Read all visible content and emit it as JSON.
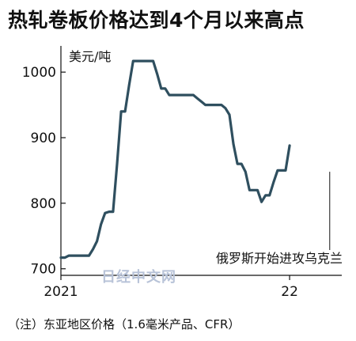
{
  "chart_data": {
    "type": "line",
    "title": "热轧卷板价格达到4个月以来高点",
    "ylabel": "美元/吨",
    "ylim": [
      690,
      1040
    ],
    "yticks": [
      700,
      800,
      900,
      1000
    ],
    "xticks": [
      {
        "label": "2021",
        "x": 0
      },
      {
        "label": "22",
        "x": 57
      }
    ],
    "xlim": [
      0,
      70
    ],
    "x_unit_note": "",
    "note": "（注）东亚地区价格（1.6毫米产品、CFR）",
    "annotation": {
      "text": "俄罗斯开始进攻乌克兰",
      "x": 67
    },
    "watermark": "日经中文网",
    "series": [
      {
        "name": "",
        "color": "#2f4f5f",
        "points": [
          [
            0,
            717
          ],
          [
            1,
            717
          ],
          [
            2,
            720
          ],
          [
            3,
            720
          ],
          [
            4,
            720
          ],
          [
            5,
            720
          ],
          [
            6,
            720
          ],
          [
            7,
            720
          ],
          [
            8,
            730
          ],
          [
            9,
            742
          ],
          [
            10,
            768
          ],
          [
            11,
            785
          ],
          [
            12,
            787
          ],
          [
            13,
            787
          ],
          [
            14,
            860
          ],
          [
            15,
            940
          ],
          [
            16,
            940
          ],
          [
            17,
            980
          ],
          [
            18,
            1017
          ],
          [
            19,
            1017
          ],
          [
            20,
            1017
          ],
          [
            21,
            1017
          ],
          [
            22,
            1017
          ],
          [
            23,
            1017
          ],
          [
            24,
            997
          ],
          [
            25,
            975
          ],
          [
            26,
            975
          ],
          [
            27,
            965
          ],
          [
            28,
            965
          ],
          [
            29,
            965
          ],
          [
            30,
            965
          ],
          [
            31,
            965
          ],
          [
            32,
            965
          ],
          [
            33,
            965
          ],
          [
            34,
            960
          ],
          [
            35,
            955
          ],
          [
            36,
            950
          ],
          [
            37,
            950
          ],
          [
            38,
            950
          ],
          [
            39,
            950
          ],
          [
            40,
            950
          ],
          [
            41,
            945
          ],
          [
            42,
            935
          ],
          [
            43,
            890
          ],
          [
            44,
            860
          ],
          [
            45,
            860
          ],
          [
            46,
            848
          ],
          [
            47,
            820
          ],
          [
            48,
            820
          ],
          [
            49,
            820
          ],
          [
            50,
            802
          ],
          [
            51,
            812
          ],
          [
            52,
            812
          ],
          [
            53,
            832
          ],
          [
            54,
            850
          ],
          [
            55,
            850
          ],
          [
            56,
            850
          ],
          [
            57,
            888
          ]
        ]
      }
    ]
  }
}
